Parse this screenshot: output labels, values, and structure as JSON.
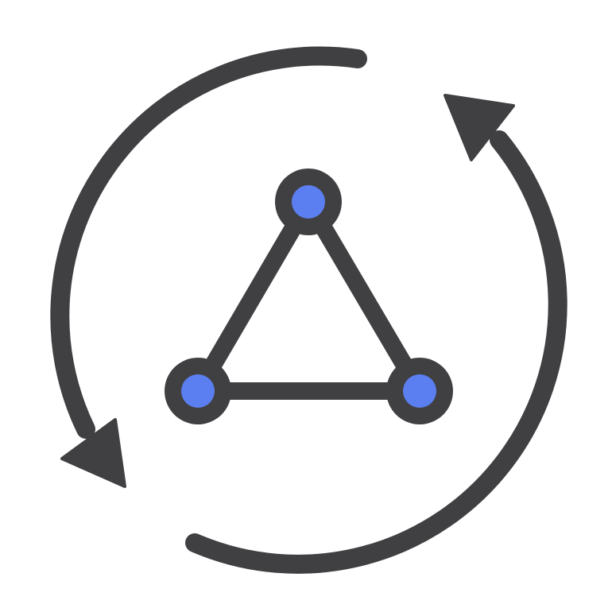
{
  "icon": {
    "name": "network-sync-icon",
    "parts": {
      "outer": "circular-sync-arrows-icon",
      "inner": "triangle-network-graph-icon"
    }
  },
  "colors": {
    "background": "#ffffff",
    "stroke": "#404043",
    "node_fill": "#5b7ff0"
  }
}
